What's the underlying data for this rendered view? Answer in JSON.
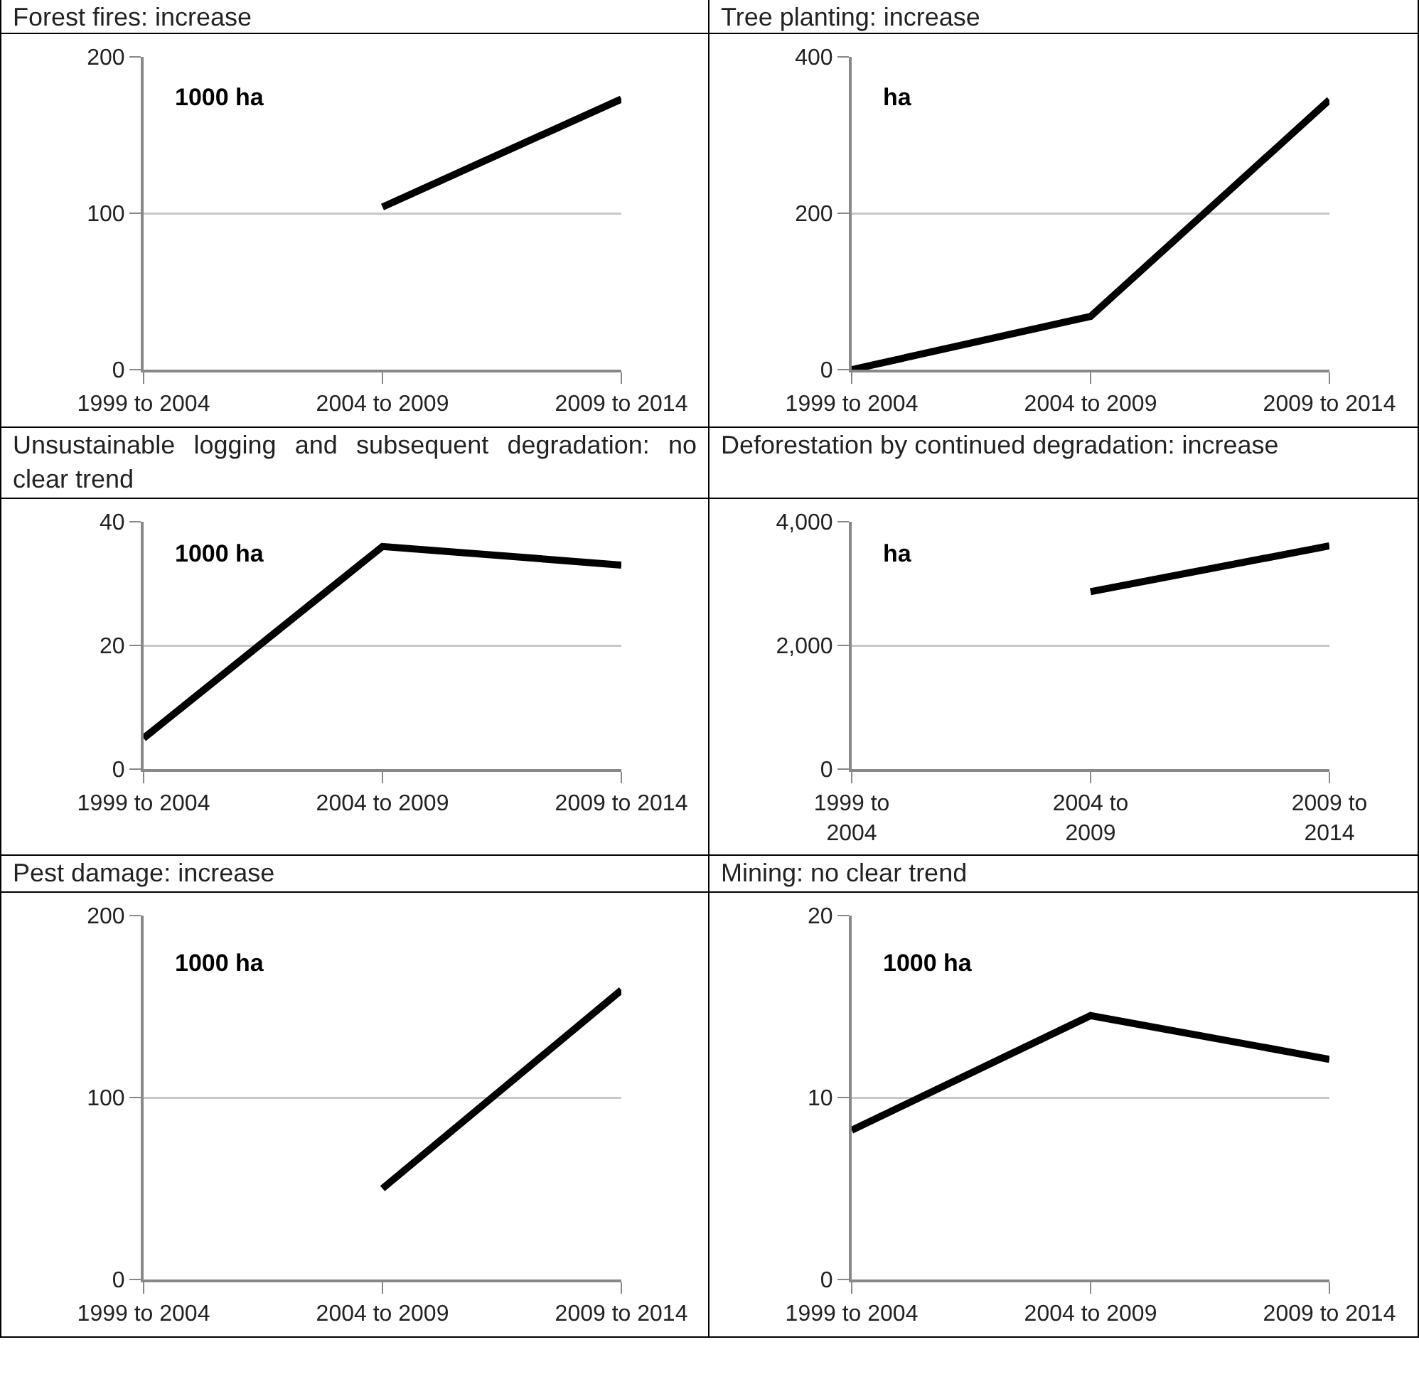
{
  "chart_data": [
    {
      "type": "line",
      "title": "Forest fires: increase",
      "annotations": [
        "1000 ha"
      ],
      "categories": [
        "1999 to 2004",
        "2004 to 2009",
        "2009 to 2014"
      ],
      "ylim": [
        0,
        200
      ],
      "yticks": [
        0,
        100,
        200
      ],
      "grid": "y",
      "marker": "none",
      "line_style": "solid",
      "series": [
        {
          "color": "#000000",
          "values": [
            null,
            104,
            173
          ]
        }
      ]
    },
    {
      "type": "line",
      "title": "Tree planting: increase",
      "annotations": [
        "ha"
      ],
      "categories": [
        "1999 to 2004",
        "2004 to 2009",
        "2009 to 2014"
      ],
      "ylim": [
        0,
        400
      ],
      "yticks": [
        0,
        200,
        400
      ],
      "grid": "y",
      "marker": "none",
      "line_style": "solid",
      "series": [
        {
          "color": "#000000",
          "values": [
            0,
            68,
            345
          ]
        }
      ]
    },
    {
      "type": "line",
      "title": "Unsustainable logging and subsequent degradation: no clear trend",
      "annotations": [
        "1000 ha"
      ],
      "categories": [
        "1999 to 2004",
        "2004 to 2009",
        "2009 to 2014"
      ],
      "ylim": [
        0,
        40
      ],
      "yticks": [
        0,
        20,
        40
      ],
      "grid": "y",
      "marker": "none",
      "line_style": "solid",
      "series": [
        {
          "color": "#000000",
          "values": [
            5,
            36,
            33
          ]
        }
      ]
    },
    {
      "type": "line",
      "title": "Deforestation by continued degradation: increase",
      "annotations": [
        "ha"
      ],
      "categories": [
        "1999 to\n2004",
        "2004 to\n2009",
        "2009 to\n2014"
      ],
      "ylim": [
        0,
        4000
      ],
      "yticks": [
        {
          "value": 0,
          "label": "0"
        },
        {
          "value": 2000,
          "label": "2,000"
        },
        {
          "value": 4000,
          "label": "4,000"
        }
      ],
      "grid": "y",
      "marker": "none",
      "line_style": "solid",
      "series": [
        {
          "color": "#000000",
          "values": [
            null,
            2870,
            3610
          ]
        }
      ]
    },
    {
      "type": "line",
      "title": "Pest damage: increase",
      "annotations": [
        "1000 ha"
      ],
      "categories": [
        "1999 to 2004",
        "2004 to 2009",
        "2009 to 2014"
      ],
      "ylim": [
        0,
        200
      ],
      "yticks": [
        0,
        100,
        200
      ],
      "grid": "y",
      "marker": "none",
      "line_style": "solid",
      "series": [
        {
          "color": "#000000",
          "values": [
            null,
            50,
            159
          ]
        }
      ]
    },
    {
      "type": "line",
      "title": "Mining: no clear trend",
      "annotations": [
        "1000 ha"
      ],
      "categories": [
        "1999 to 2004",
        "2004 to 2009",
        "2009 to 2014"
      ],
      "ylim": [
        0,
        20
      ],
      "yticks": [
        0,
        10,
        20
      ],
      "grid": "y",
      "marker": "none",
      "line_style": "solid",
      "series": [
        {
          "color": "#000000",
          "values": [
            8.2,
            14.5,
            12.1
          ]
        }
      ]
    }
  ]
}
